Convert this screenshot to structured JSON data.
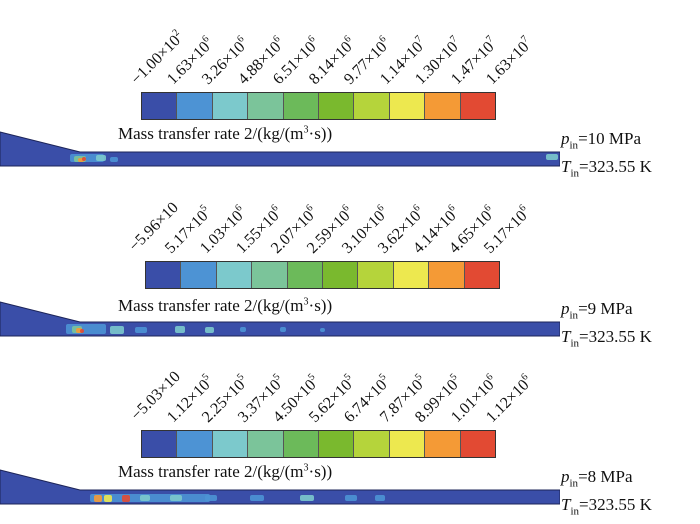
{
  "colorbar_title": "Mass transfer rate 2/(kg/(m³·s))",
  "colorbar_title_parts": {
    "before": "Mass transfer rate 2/(kg/(m",
    "sup": "3",
    "after": "·s))"
  },
  "colors": [
    "#3a4ea8",
    "#4d93d4",
    "#7cc9cc",
    "#7bc49a",
    "#6cba5a",
    "#7ab92e",
    "#b5d43b",
    "#ede84f",
    "#f49a36",
    "#e24a33"
  ],
  "panels": [
    {
      "ticks": [
        {
          "m": "−1.00×10",
          "e": "2"
        },
        {
          "m": "1.63×10",
          "e": "6"
        },
        {
          "m": "3.26×10",
          "e": "6"
        },
        {
          "m": "4.88×10",
          "e": "6"
        },
        {
          "m": "6.51×10",
          "e": "6"
        },
        {
          "m": "8.14×10",
          "e": "6"
        },
        {
          "m": "9.77×10",
          "e": "6"
        },
        {
          "m": "1.14×10",
          "e": "7"
        },
        {
          "m": "1.30×10",
          "e": "7"
        },
        {
          "m": "1.47×10",
          "e": "7"
        },
        {
          "m": "1.63×10",
          "e": "7"
        }
      ],
      "p_sym": "p",
      "p_sub": "in",
      "p_val": "=10 MPa",
      "t_sym": "T",
      "t_sub": "in",
      "t_val": "=323.55 K"
    },
    {
      "ticks": [
        {
          "m": "−5.96×10",
          "e": ""
        },
        {
          "m": "5.17×10",
          "e": "5"
        },
        {
          "m": "1.03×10",
          "e": "6"
        },
        {
          "m": "1.55×10",
          "e": "6"
        },
        {
          "m": "2.07×10",
          "e": "6"
        },
        {
          "m": "2.59×10",
          "e": "6"
        },
        {
          "m": "3.10×10",
          "e": "6"
        },
        {
          "m": "3.62×10",
          "e": "6"
        },
        {
          "m": "4.14×10",
          "e": "6"
        },
        {
          "m": "4.65×10",
          "e": "6"
        },
        {
          "m": "5.17×10",
          "e": "6"
        }
      ],
      "p_sym": "p",
      "p_sub": "in",
      "p_val": "=9 MPa",
      "t_sym": "T",
      "t_sub": "in",
      "t_val": "=323.55 K"
    },
    {
      "ticks": [
        {
          "m": "−5.03×10",
          "e": ""
        },
        {
          "m": "1.12×10",
          "e": "5"
        },
        {
          "m": "2.25×10",
          "e": "5"
        },
        {
          "m": "3.37×10",
          "e": "5"
        },
        {
          "m": "4.50×10",
          "e": "5"
        },
        {
          "m": "5.62×10",
          "e": "5"
        },
        {
          "m": "6.74×10",
          "e": "5"
        },
        {
          "m": "7.87×10",
          "e": "5"
        },
        {
          "m": "8.99×10",
          "e": "5"
        },
        {
          "m": "1.01×10",
          "e": "6"
        },
        {
          "m": "1.12×10",
          "e": "6"
        }
      ],
      "p_sym": "p",
      "p_sub": "in",
      "p_val": "=8 MPa",
      "t_sym": "T",
      "t_sub": "in",
      "t_val": "=323.55 K"
    }
  ]
}
